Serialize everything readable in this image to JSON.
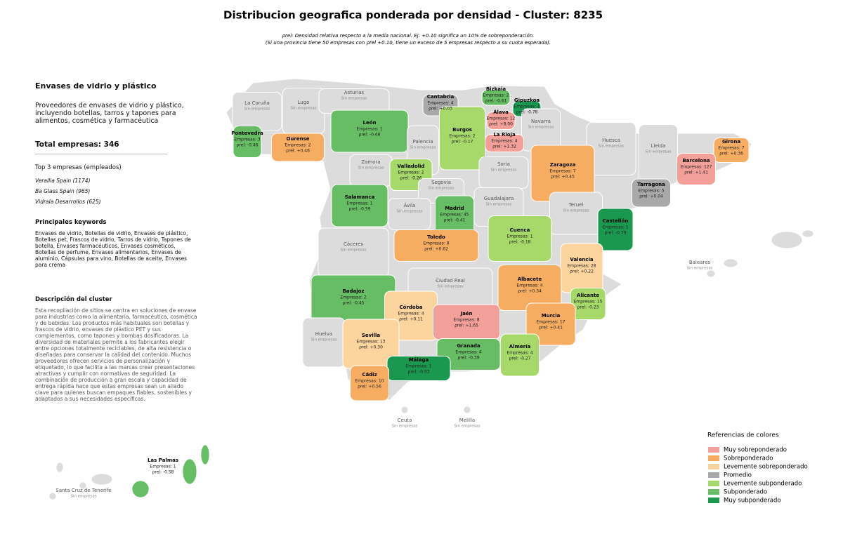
{
  "header": {
    "title": "Distribucion geografica ponderada por densidad - Cluster: 8235",
    "subtitle": [
      "ρrel: Densidad relativa respecto a la media nacional. Ej: +0.10 significa un 10% de sobreponderación.",
      "(Si una provincia tiene 50 empresas con ρrel +0.10, tiene un exceso de 5 empresas respecto a su cuota esperada)."
    ]
  },
  "panel": {
    "title": "Envases de vidrio y plástico",
    "description": "Proveedores de envases de vidrio y plástico, incluyendo botellas, tarros y tapones para alimentos, cosmética y farmacéutica",
    "total": "Total empresas: 346",
    "top_heading": "Top 3 empresas (empleados)",
    "top_companies": [
      "Verallia Spain (1174)",
      "Ba Glass Spain (965)",
      "Vidrala Desarrollos (625)"
    ],
    "keywords_heading": "Principales keywords",
    "keywords": "Envases de vidrio, Botellas de vidrio, Envases de plástico, Botellas pet, Frascos de vidrio, Tarros de vidrio, Tapones de botella, Envases farmacéuticos, Envases cosméticos, Botellas de perfume, Envases alimentarios, Envases de aluminio, Cápsulas para vino, Botellas de aceite, Envases para crema",
    "cluster_heading": "Descripción del cluster",
    "cluster_description": "Esta recopilación de sitios se centra en soluciones de envase para industrias como la alimentaria, farmacéutica, cosmética y de bebidas. Los productos más habituales son botellas y frascos de vidrio, envases de plástico PET y sus complementos, como tapones y bombas dosificadoras. La diversidad de materiales permite a los fabricantes elegir entre opciones totalmente reciclables, de alta resistencia o diseñadas para conservar la calidad del contenido. Muchos proveedores ofrecen servicios de personalización y etiquetado, lo que facilita a las marcas crear presentaciones atractivas y cumplir con normativas de seguridad. La combinación de producción a gran escala y capacidad de entrega rápida hace que estas empresas sean un aliado clave para quienes buscan empaques fiables, sostenibles y adaptados a sus necesidades específicas."
  },
  "map": {
    "provinces": [
      {
        "name": "La Coruña",
        "status": "Sin empresas",
        "color": "#dcdcdc"
      },
      {
        "name": "Lugo",
        "status": "Sin empresas",
        "color": "#dcdcdc"
      },
      {
        "name": "Asturias",
        "status": "Sin empresas",
        "color": "#dcdcdc"
      },
      {
        "name": "Cantabria",
        "empresas": "Empresas: 4",
        "rho": "ρrel: +0.03",
        "color": "#a9a9a9"
      },
      {
        "name": "Bizkaia",
        "empresas": "Empresas: 2",
        "rho": "ρrel: -0.61",
        "color": "#66bd63"
      },
      {
        "name": "Gipuzkoa",
        "empresas": "Empresas: 1",
        "rho": "ρrel: -0.78",
        "color": "#1a9850"
      },
      {
        "name": "Álava",
        "empresas": "Empresas: 12",
        "rho": "ρrel: +8.00",
        "color": "#f4a09a"
      },
      {
        "name": "Navarra",
        "status": "Sin empresas",
        "color": "#dcdcdc"
      },
      {
        "name": "La Rioja",
        "empresas": "Empresas: 4",
        "rho": "ρrel: +1.32",
        "color": "#f4a09a"
      },
      {
        "name": "Pontevedra",
        "empresas": "Empresas: 3",
        "rho": "ρrel: -0.46",
        "color": "#66bd63"
      },
      {
        "name": "Ourense",
        "empresas": "Empresas: 2",
        "rho": "ρrel: +0.46",
        "color": "#f6ad62"
      },
      {
        "name": "León",
        "empresas": "Empresas: 1",
        "rho": "ρrel: -0.68",
        "color": "#66bd63"
      },
      {
        "name": "Palencia",
        "status": "Sin empresas",
        "color": "#dcdcdc"
      },
      {
        "name": "Burgos",
        "empresas": "Empresas: 2",
        "rho": "ρrel: -0.17",
        "color": "#a6d96a"
      },
      {
        "name": "Zamora",
        "status": "Sin empresas",
        "color": "#dcdcdc"
      },
      {
        "name": "Valladolid",
        "empresas": "Empresas: 2",
        "rho": "ρrel: -0.26",
        "color": "#a6d96a"
      },
      {
        "name": "Soria",
        "status": "Sin empresas",
        "color": "#dcdcdc"
      },
      {
        "name": "Segovia",
        "status": "Sin empresas",
        "color": "#dcdcdc"
      },
      {
        "name": "Huesca",
        "status": "Sin empresas",
        "color": "#dcdcdc"
      },
      {
        "name": "Lleida",
        "status": "Sin empresas",
        "color": "#dcdcdc"
      },
      {
        "name": "Girona",
        "empresas": "Empresas: 7",
        "rho": "ρrel: +0.36",
        "color": "#f6ad62"
      },
      {
        "name": "Barcelona",
        "empresas": "Empresas: 127",
        "rho": "ρrel: +1.41",
        "color": "#f4a09a"
      },
      {
        "name": "Zaragoza",
        "empresas": "Empresas: 7",
        "rho": "ρrel: +0.45",
        "color": "#f6ad62"
      },
      {
        "name": "Tarragona",
        "empresas": "Empresas: 5",
        "rho": "ρrel: +0.04",
        "color": "#a9a9a9"
      },
      {
        "name": "Salamanca",
        "empresas": "Empresas: 1",
        "rho": "ρrel: -0.59",
        "color": "#66bd63"
      },
      {
        "name": "Ávila",
        "status": "Sin empresas",
        "color": "#dcdcdc"
      },
      {
        "name": "Madrid",
        "empresas": "Empresas: 45",
        "rho": "ρrel: -0.41",
        "color": "#66bd63"
      },
      {
        "name": "Guadalajara",
        "status": "Sin empresas",
        "color": "#dcdcdc"
      },
      {
        "name": "Teruel",
        "status": "Sin empresas",
        "color": "#dcdcdc"
      },
      {
        "name": "Castellón",
        "empresas": "Empresas: 1",
        "rho": "ρrel: -0.79",
        "color": "#1a9850"
      },
      {
        "name": "Cáceres",
        "status": "Sin empresas",
        "color": "#dcdcdc"
      },
      {
        "name": "Toledo",
        "empresas": "Empresas: 8",
        "rho": "ρrel: +0.62",
        "color": "#f6ad62"
      },
      {
        "name": "Cuenca",
        "empresas": "Empresas: 1",
        "rho": "ρrel: -0.18",
        "color": "#a6d96a"
      },
      {
        "name": "Valencia",
        "empresas": "Empresas: 28",
        "rho": "ρrel: +0.22",
        "color": "#fdd49e"
      },
      {
        "name": "Ciudad Real",
        "status": "Sin empresas",
        "color": "#dcdcdc"
      },
      {
        "name": "Badajoz",
        "empresas": "Empresas: 2",
        "rho": "ρrel: -0.45",
        "color": "#66bd63"
      },
      {
        "name": "Albacete",
        "empresas": "Empresas: 4",
        "rho": "ρrel: +0.34",
        "color": "#f6ad62"
      },
      {
        "name": "Alicante",
        "empresas": "Empresas: 15",
        "rho": "ρrel: -0.23",
        "color": "#a6d96a"
      },
      {
        "name": "Córdoba",
        "empresas": "Empresas: 4",
        "rho": "ρrel: +0.11",
        "color": "#fdd49e"
      },
      {
        "name": "Jaén",
        "empresas": "Empresas: 8",
        "rho": "ρrel: +1.65",
        "color": "#f4a09a"
      },
      {
        "name": "Murcia",
        "empresas": "Empresas: 17",
        "rho": "ρrel: +0.41",
        "color": "#f6ad62"
      },
      {
        "name": "Huelva",
        "status": "Sin empresas",
        "color": "#dcdcdc"
      },
      {
        "name": "Sevilla",
        "empresas": "Empresas: 13",
        "rho": "ρrel: +0.30",
        "color": "#fdd49e"
      },
      {
        "name": "Granada",
        "empresas": "Empresas: 4",
        "rho": "ρrel: -0.39",
        "color": "#66bd63"
      },
      {
        "name": "Almería",
        "empresas": "Empresas: 4",
        "rho": "ρrel: -0.27",
        "color": "#a6d96a"
      },
      {
        "name": "Málaga",
        "empresas": "Empresas: 1",
        "rho": "ρrel: -0.93",
        "color": "#1a9850"
      },
      {
        "name": "Cádiz",
        "empresas": "Empresas: 10",
        "rho": "ρrel: +0.56",
        "color": "#f6ad62"
      },
      {
        "name": "Baleares",
        "status": "Sin empresas",
        "color": "#dcdcdc"
      },
      {
        "name": "Ceuta",
        "status": "Sin empresas",
        "color": "#dcdcdc"
      },
      {
        "name": "Melilla",
        "status": "Sin empresas",
        "color": "#dcdcdc"
      },
      {
        "name": "Las Palmas",
        "empresas": "Empresas: 1",
        "rho": "ρrel: -0.58",
        "color": "#66bd63"
      },
      {
        "name": "Santa Cruz de Tenerife",
        "status": "Sin empresas",
        "color": "#dcdcdc"
      }
    ]
  },
  "legend": {
    "title": "Referencias de colores",
    "items": [
      {
        "label": "Muy sobreponderado",
        "color": "#f4a09a"
      },
      {
        "label": "Sobreponderado",
        "color": "#f6ad62"
      },
      {
        "label": "Levemente sobreponderado",
        "color": "#fdd49e"
      },
      {
        "label": "Promedio",
        "color": "#a9a9a9"
      },
      {
        "label": "Levemente subponderado",
        "color": "#a6d96a"
      },
      {
        "label": "Subponderado",
        "color": "#66bd63"
      },
      {
        "label": "Muy subponderado",
        "color": "#1a9850"
      }
    ]
  }
}
